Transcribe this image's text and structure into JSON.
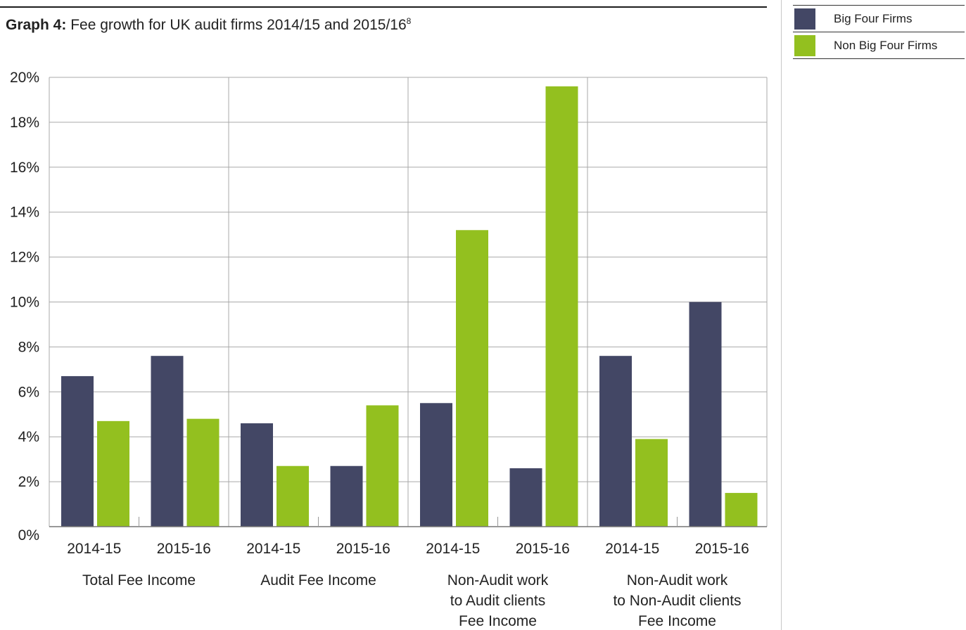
{
  "title": {
    "bold": "Graph 4:",
    "text": " Fee growth for UK audit firms 2014/15 and 2015/16",
    "footnote": "8"
  },
  "legend": [
    {
      "label": "Big Four Firms",
      "color": "#434765"
    },
    {
      "label": "Non Big Four Firms",
      "color": "#93c01f"
    }
  ],
  "chart_data": {
    "type": "bar",
    "title": "Fee growth for UK audit firms 2014/15 and 2015/16",
    "ylim": [
      0,
      20
    ],
    "yticks": [
      "0%",
      "2%",
      "4%",
      "6%",
      "8%",
      "10%",
      "12%",
      "14%",
      "16%",
      "18%",
      "20%"
    ],
    "grid": true,
    "legend_position": "top-right",
    "groups": [
      {
        "label": [
          "Total Fee Income"
        ],
        "categories": [
          "2014-15",
          "2015-16"
        ]
      },
      {
        "label": [
          "Audit Fee Income"
        ],
        "categories": [
          "2014-15",
          "2015-16"
        ]
      },
      {
        "label": [
          "Non-Audit work",
          "to Audit clients",
          "Fee Income"
        ],
        "categories": [
          "2014-15",
          "2015-16"
        ]
      },
      {
        "label": [
          "Non-Audit work",
          "to Non-Audit clients",
          "Fee Income"
        ],
        "categories": [
          "2014-15",
          "2015-16"
        ]
      }
    ],
    "series": [
      {
        "name": "Big Four Firms",
        "color": "#434765",
        "values": [
          6.7,
          7.6,
          4.6,
          2.7,
          5.5,
          2.6,
          7.6,
          10.0
        ]
      },
      {
        "name": "Non Big Four Firms",
        "color": "#93c01f",
        "values": [
          4.7,
          4.8,
          2.7,
          5.4,
          13.2,
          19.6,
          3.9,
          1.5
        ]
      }
    ]
  }
}
